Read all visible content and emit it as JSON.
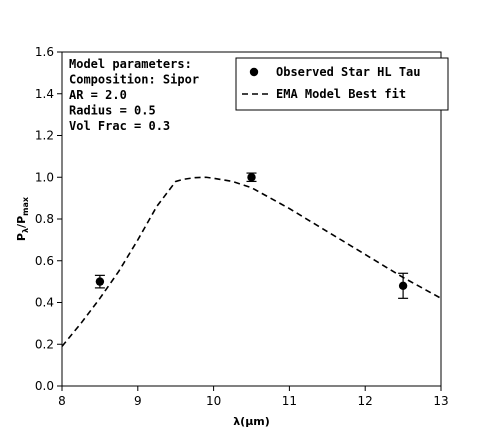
{
  "chart_data": {
    "type": "line",
    "xlabel": "λ(μm)",
    "ylabel": {
      "base": "P",
      "sub1": "λ",
      "slash": "/P",
      "sub2": "max"
    },
    "xlim": [
      8,
      13
    ],
    "ylim": [
      0.0,
      1.6
    ],
    "xticks": [
      8,
      9,
      10,
      11,
      12,
      13
    ],
    "yticks": [
      0.0,
      0.2,
      0.4,
      0.6,
      0.8,
      1.0,
      1.2,
      1.4,
      1.6
    ],
    "xtick_labels": [
      "8",
      "9",
      "10",
      "11",
      "12",
      "13"
    ],
    "ytick_labels": [
      "0.0",
      "0.2",
      "0.4",
      "0.6",
      "0.8",
      "1.0",
      "1.2",
      "1.4",
      "1.6"
    ],
    "annotation_lines": [
      "Model parameters:",
      "Composition: Sipor",
      "AR = 2.0",
      "Radius = 0.5",
      "Vol Frac = 0.3"
    ],
    "legend": {
      "placement": "upper right",
      "entries": [
        {
          "label": "Observed Star HL Tau",
          "marker": "circle"
        },
        {
          "label": "EMA Model Best fit",
          "marker": "dashed-line"
        }
      ]
    },
    "series": [
      {
        "label_ref": 0,
        "kind": "errorbar",
        "color": "#000000",
        "points": [
          {
            "x": 8.5,
            "y": 0.5,
            "yerr": 0.03
          },
          {
            "x": 10.5,
            "y": 1.0,
            "yerr": 0.02
          },
          {
            "x": 12.5,
            "y": 0.48,
            "yerr": 0.06
          }
        ]
      },
      {
        "label_ref": 1,
        "kind": "dashed-line",
        "color": "#000000",
        "x": [
          8.0,
          8.25,
          8.5,
          8.75,
          9.0,
          9.25,
          9.5,
          9.6,
          9.75,
          9.9,
          10.0,
          10.25,
          10.5,
          10.75,
          11.0,
          11.5,
          12.0,
          12.5,
          13.0
        ],
        "y": [
          0.19,
          0.3,
          0.42,
          0.55,
          0.7,
          0.86,
          0.98,
          0.99,
          0.998,
          1.0,
          0.995,
          0.98,
          0.95,
          0.9,
          0.85,
          0.74,
          0.63,
          0.52,
          0.42
        ]
      }
    ],
    "grid": false
  }
}
